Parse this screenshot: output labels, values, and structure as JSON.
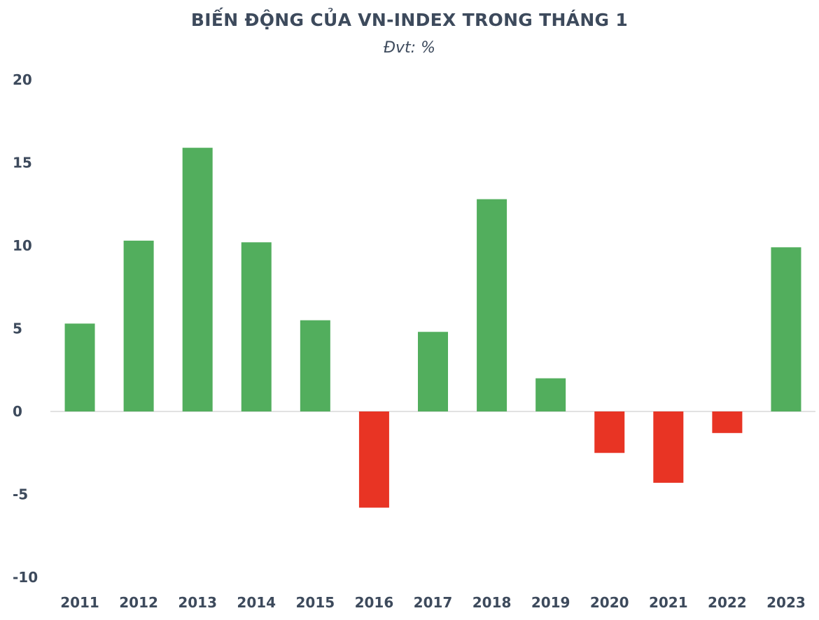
{
  "chart_data": {
    "type": "bar",
    "title": "BIẾN ĐỘNG CỦA VN-INDEX TRONG THÁNG 1",
    "subtitle": "Đvt: %",
    "xlabel": "",
    "ylabel": "",
    "categories": [
      "2011",
      "2012",
      "2013",
      "2014",
      "2015",
      "2016",
      "2017",
      "2018",
      "2019",
      "2020",
      "2021",
      "2022",
      "2023"
    ],
    "values": [
      5.3,
      10.3,
      15.9,
      10.2,
      5.5,
      -5.8,
      4.8,
      12.8,
      2.0,
      -2.5,
      -4.3,
      -1.3,
      9.9
    ],
    "ylim": [
      -10,
      20
    ],
    "yticks": [
      20,
      15,
      10,
      5,
      0,
      -5,
      -10
    ],
    "grid": false,
    "legend": "none",
    "colors": {
      "positive": "#52ae5d",
      "negative": "#e83424",
      "text": "#3d4a5c",
      "zero_line": "#d9d9d9"
    }
  }
}
